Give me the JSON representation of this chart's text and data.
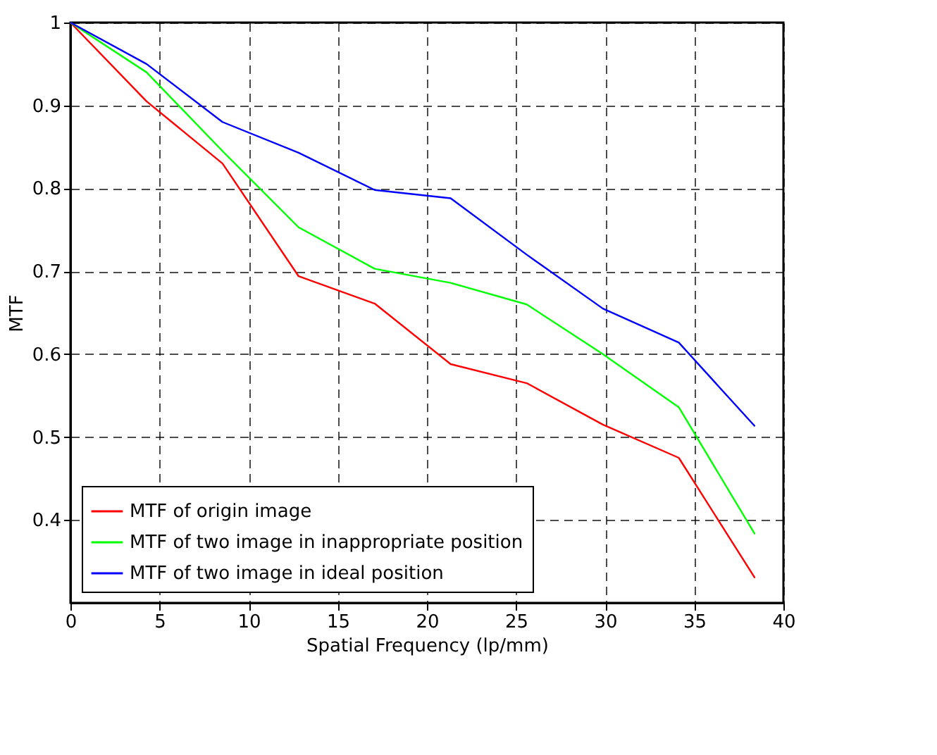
{
  "chart_data": {
    "type": "line",
    "xlabel": "Spatial Frequency (lp/mm)",
    "ylabel": "MTF",
    "x": [
      0,
      4.27,
      8.53,
      12.8,
      17.07,
      21.33,
      25.6,
      29.87,
      34.13,
      38.4
    ],
    "series": [
      {
        "name": "MTF of origin image",
        "color": "#ff0000",
        "values": [
          1,
          0.905,
          0.83,
          0.694,
          0.661,
          0.588,
          0.565,
          0.515,
          0.475,
          0.33
        ]
      },
      {
        "name": "MTF of two image in inappropriate position",
        "color": "#00ff00",
        "values": [
          1,
          0.94,
          0.845,
          0.753,
          0.703,
          0.686,
          0.66,
          0.6,
          0.536,
          0.383
        ]
      },
      {
        "name": "MTF of two image in ideal position",
        "color": "#0000ff",
        "values": [
          1,
          0.95,
          0.88,
          0.843,
          0.798,
          0.788,
          0.72,
          0.655,
          0.614,
          0.513
        ]
      }
    ],
    "xlim": [
      0,
      40
    ],
    "xticks": [
      0,
      5,
      10,
      15,
      20,
      25,
      30,
      35,
      40
    ],
    "ylim": [
      0.3,
      1
    ],
    "yticks": [
      0.4,
      0.5,
      0.6,
      0.7,
      0.8,
      0.9,
      1
    ],
    "grid": true,
    "legend": "bottom left",
    "marker": "none",
    "line_style": "solid"
  }
}
